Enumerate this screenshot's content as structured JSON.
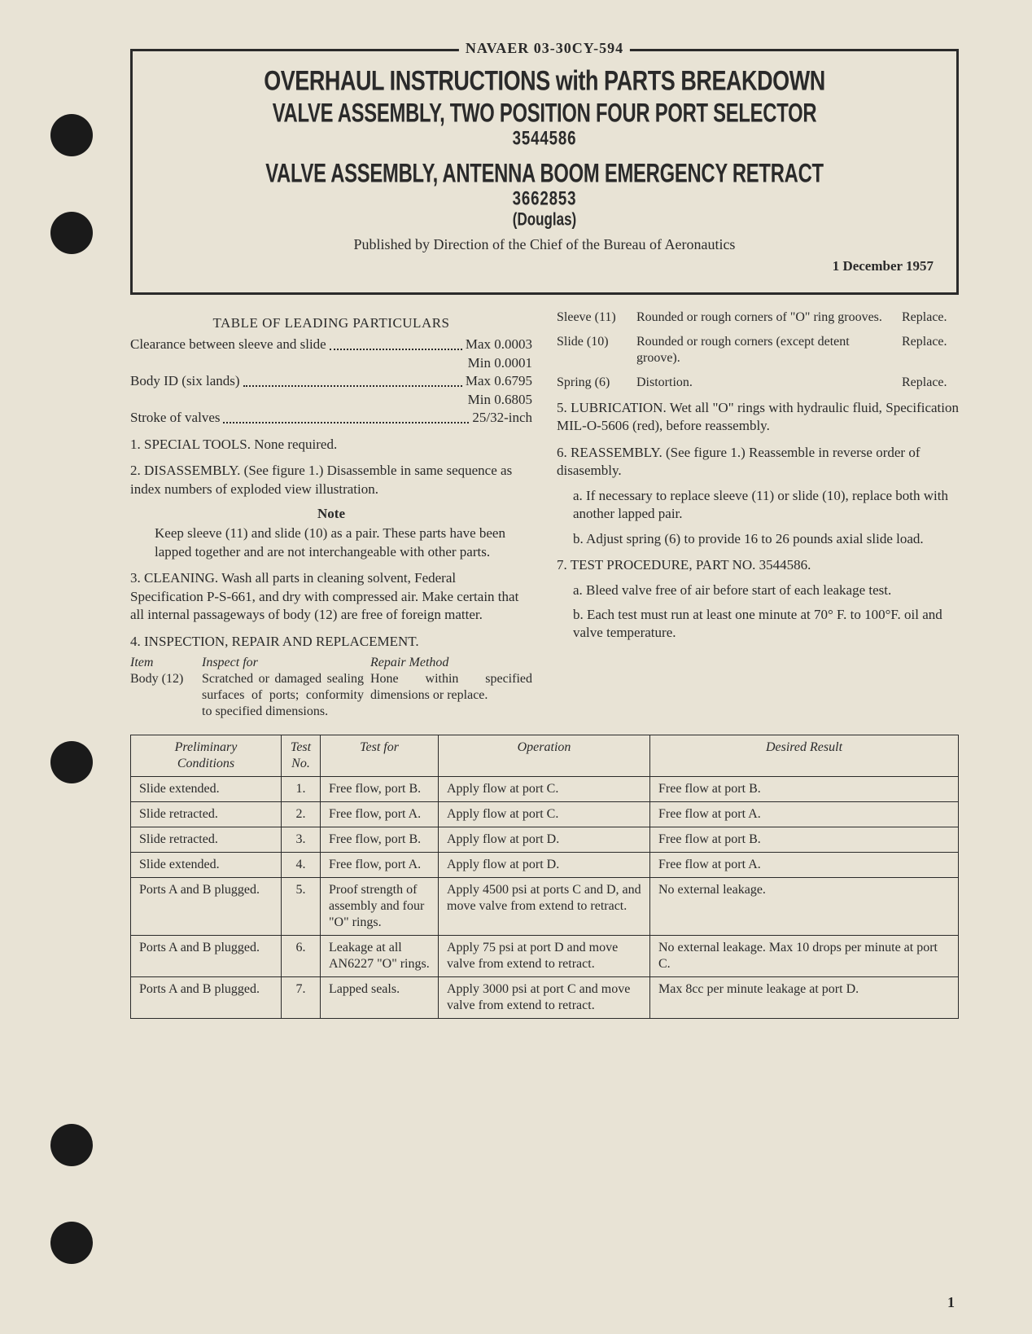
{
  "doc_number": "NAVAER 03-30CY-594",
  "title_box": {
    "line1": "OVERHAUL INSTRUCTIONS with PARTS BREAKDOWN",
    "line2": "VALVE ASSEMBLY, TWO POSITION FOUR PORT SELECTOR",
    "part1": "3544586",
    "line3": "VALVE ASSEMBLY, ANTENNA BOOM EMERGENCY RETRACT",
    "part2": "3662853",
    "maker": "(Douglas)",
    "published": "Published by Direction of the Chief of the Bureau of Aeronautics",
    "date": "1 December 1957"
  },
  "leading": {
    "heading": "TABLE OF LEADING PARTICULARS",
    "rows": [
      {
        "label": "Clearance between sleeve and slide",
        "val": "Max 0.0003"
      },
      {
        "label": "",
        "val": "Min 0.0001"
      },
      {
        "label": "Body ID (six lands)",
        "val": "Max 0.6795"
      },
      {
        "label": "",
        "val": "Min 0.6805"
      },
      {
        "label": "Stroke of valves",
        "val": "25/32-inch"
      }
    ]
  },
  "left_sections": {
    "s1": "1. SPECIAL TOOLS. None required.",
    "s2": "2. DISASSEMBLY. (See figure 1.) Disassemble in same sequence as index numbers of exploded view illustration.",
    "note_head": "Note",
    "note_body": "Keep sleeve (11) and slide (10) as a pair. These parts have been lapped together and are not interchangeable with other parts.",
    "s3": "3. CLEANING. Wash all parts in cleaning solvent, Federal Specification P-S-661, and dry with compressed air. Make certain that all internal passageways of body (12) are free of foreign matter.",
    "s4": "4. INSPECTION, REPAIR AND REPLACEMENT.",
    "insp_headers": {
      "item": "Item",
      "inspect": "Inspect for",
      "repair": "Repair Method"
    },
    "insp_row": {
      "item": "Body (12)",
      "inspect": "Scratched or damaged sealing surfaces of ports; conformity to specified dimensions.",
      "repair": "Hone within specified dimensions or replace."
    }
  },
  "right_insp": [
    {
      "item": "Sleeve (11)",
      "inspect": "Rounded or rough corners of \"O\" ring grooves.",
      "repair": "Replace."
    },
    {
      "item": "Slide (10)",
      "inspect": "Rounded or rough corners (except detent groove).",
      "repair": "Replace."
    },
    {
      "item": "Spring (6)",
      "inspect": "Distortion.",
      "repair": "Replace."
    }
  ],
  "right_sections": {
    "s5": "5. LUBRICATION. Wet all \"O\" rings with hydraulic fluid, Specification MIL-O-5606 (red), before reassembly.",
    "s6": "6. REASSEMBLY. (See figure 1.) Reassemble in reverse order of disasembly.",
    "s6a": "a. If necessary to replace sleeve (11) or slide (10), replace both with another lapped pair.",
    "s6b": "b. Adjust spring (6) to provide 16 to 26 pounds axial slide load.",
    "s7": "7. TEST PROCEDURE, PART NO. 3544586.",
    "s7a": "a. Bleed valve free of air before start of each leakage test.",
    "s7b": "b. Each test must run at least one minute at 70° F. to 100°F. oil and valve temperature."
  },
  "test_table": {
    "headers": [
      "Preliminary\nConditions",
      "Test\nNo.",
      "Test for",
      "Operation",
      "Desired Result"
    ],
    "rows": [
      [
        "Slide extended.",
        "1.",
        "Free flow, port B.",
        "Apply flow at port C.",
        "Free flow at port B."
      ],
      [
        "Slide retracted.",
        "2.",
        "Free flow, port A.",
        "Apply flow at port C.",
        "Free flow at port A."
      ],
      [
        "Slide retracted.",
        "3.",
        "Free flow, port B.",
        "Apply flow at port D.",
        "Free flow at port B."
      ],
      [
        "Slide extended.",
        "4.",
        "Free flow, port A.",
        "Apply flow at port D.",
        "Free flow at port A."
      ],
      [
        "Ports A and B plugged.",
        "5.",
        "Proof strength of assembly and four \"O\" rings.",
        "Apply 4500 psi at ports C and D, and move valve from extend to retract.",
        "No external leakage."
      ],
      [
        "Ports A and B plugged.",
        "6.",
        "Leakage at all AN6227 \"O\" rings.",
        "Apply 75 psi at port D and move valve from extend to retract.",
        "No external leakage. Max 10 drops per minute at port C."
      ],
      [
        "Ports A and B plugged.",
        "7.",
        "Lapped seals.",
        "Apply 3000 psi at port C and move valve from extend to retract.",
        "Max 8cc per minute leakage at port D."
      ]
    ]
  },
  "page_number": "1",
  "colors": {
    "paper": "#e8e3d5",
    "ink": "#2a2a2a"
  }
}
